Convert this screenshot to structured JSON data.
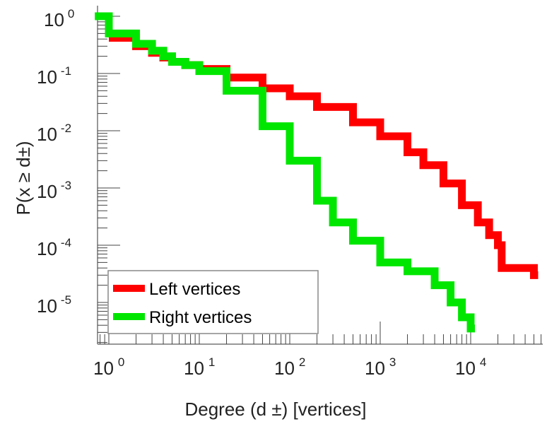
{
  "chart_data": {
    "type": "line",
    "xscale": "log",
    "yscale": "log",
    "xlabel": "Degree (d ±) [vertices]",
    "ylabel": "P(x ≥ d±)",
    "xlim": [
      0.7,
      60000
    ],
    "ylim": [
      1.9e-06,
      1.4
    ],
    "x_ticks": [
      {
        "base": "10",
        "exp": "0",
        "v": 1
      },
      {
        "base": "10",
        "exp": "1",
        "v": 10
      },
      {
        "base": "10",
        "exp": "2",
        "v": 100
      },
      {
        "base": "10",
        "exp": "3",
        "v": 1000
      },
      {
        "base": "10",
        "exp": "4",
        "v": 10000
      }
    ],
    "y_ticks": [
      {
        "base": "10",
        "exp": "0",
        "v": 1
      },
      {
        "base": "10",
        "exp": "-1",
        "v": 0.1
      },
      {
        "base": "10",
        "exp": "-2",
        "v": 0.01
      },
      {
        "base": "10",
        "exp": "-3",
        "v": 0.001
      },
      {
        "base": "10",
        "exp": "-4",
        "v": 0.0001
      },
      {
        "base": "10",
        "exp": "-5",
        "v": 1e-05
      }
    ],
    "legend_position": "bottom-left",
    "series": [
      {
        "name": "Left vertices",
        "color": "#ff0000",
        "x": [
          1,
          2,
          3,
          4,
          5,
          7,
          10,
          20,
          50,
          100,
          200,
          500,
          1000,
          2000,
          3000,
          5000,
          8000,
          12000,
          16000,
          20000,
          22000,
          50000
        ],
        "y": [
          0.42,
          0.3,
          0.23,
          0.19,
          0.16,
          0.14,
          0.12,
          0.085,
          0.055,
          0.04,
          0.026,
          0.014,
          0.008,
          0.0042,
          0.0025,
          0.0012,
          0.0005,
          0.00025,
          0.00015,
          0.0001,
          4e-05,
          3e-05
        ]
      },
      {
        "name": "Right vertices",
        "color": "#00e600",
        "x": [
          0.7,
          1,
          2,
          3,
          4,
          5,
          7,
          10,
          20,
          50,
          100,
          200,
          300,
          500,
          1000,
          2000,
          3000,
          4000,
          6000,
          8000,
          10000
        ],
        "y": [
          1.0,
          0.5,
          0.33,
          0.25,
          0.2,
          0.16,
          0.14,
          0.11,
          0.05,
          0.012,
          0.003,
          0.0006,
          0.00025,
          0.00012,
          5e-05,
          3.5e-05,
          3.5e-05,
          2e-05,
          1e-05,
          5.5e-06,
          3.5e-06
        ]
      }
    ]
  }
}
